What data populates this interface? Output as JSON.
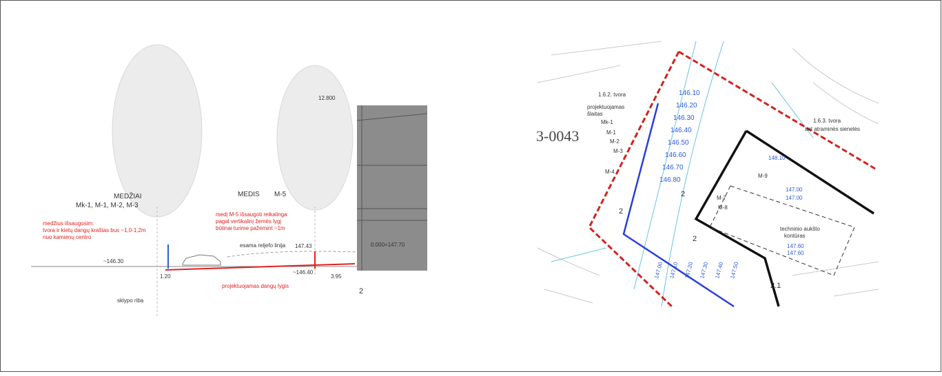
{
  "section": {
    "tree_group_label": "MEDŽIAI",
    "tree_group_ids": "Mk-1, M-1, M-2, M-3",
    "tree_group_note": [
      "medžius išsaugosim:",
      "tvora ir kietų dangų kraštas bus ~1,0-1,2m",
      "nuo kamienų centro"
    ],
    "tree_label": "MEDIS",
    "tree_id": "M-5",
    "tree_note": [
      "medį M-5 išsaugoti reikalinga",
      "pagal vertikalinį žemės lygį",
      "būtinai turime pažemint ~1m"
    ],
    "existing_terrain": "esama reljefo linija",
    "existing_level": "147.43",
    "left_level": "~146.30",
    "right_level": "~146.40",
    "offset_left": "1.20",
    "offset_right": "3.95",
    "section_mark": "2",
    "zero_level": "0.000=147.70",
    "height_mark": "12.800",
    "paving_level": "projektuojamas dangų lygis",
    "plot_boundary": "sklypo riba"
  },
  "plan": {
    "plot_number": "3-0043",
    "fence_1": "1.6.2. tvora",
    "slope": [
      "projektuojamas",
      "šlaitas"
    ],
    "fence_2": "1.6.3. tvora",
    "fence_2_note": "ant atraminės sienelės",
    "building_id": "M-9",
    "building_level": "148.10",
    "levels_a": [
      "147.00",
      "147.00"
    ],
    "tech_floor": [
      "techninio aukšto",
      "kontūras"
    ],
    "levels_b": [
      "147.60",
      "147.60"
    ],
    "section_marks": [
      "2",
      "2",
      "2",
      "2.1"
    ],
    "tree_ids": [
      "Mk-1",
      "M-1",
      "M-2",
      "M-3",
      "M-4",
      "M-7",
      "M-8"
    ],
    "elevations": [
      "146.10",
      "146.20",
      "146.30",
      "146.40",
      "146.50",
      "146.60",
      "146.70",
      "146.80"
    ],
    "slope_elevations": [
      "147.00",
      "147.10",
      "147.20",
      "147.30",
      "147.40",
      "147.50"
    ]
  }
}
